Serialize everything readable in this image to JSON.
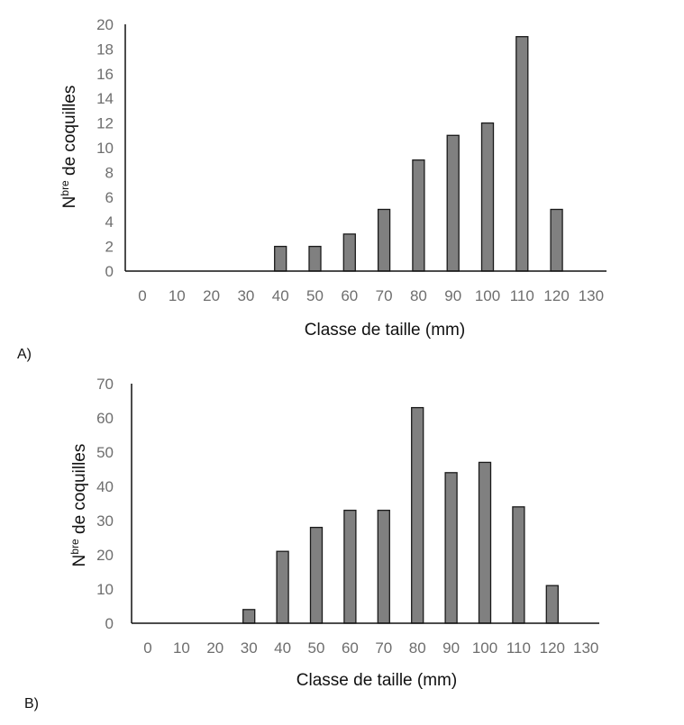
{
  "chart_data": [
    {
      "type": "bar",
      "panel_label": "A)",
      "xlabel": "Classe de taille (mm)",
      "ylabel_main": "N",
      "ylabel_sup": "bre",
      "ylabel_rest": " de coquilles",
      "ylim": [
        0,
        20
      ],
      "yticks": [
        "0",
        "2",
        "4",
        "6",
        "8",
        "10",
        "12",
        "14",
        "16",
        "18",
        "20"
      ],
      "categories": [
        "0",
        "10",
        "20",
        "30",
        "40",
        "50",
        "60",
        "70",
        "80",
        "90",
        "100",
        "110",
        "120",
        "130"
      ],
      "values": [
        0,
        0,
        0,
        0,
        2,
        2,
        3,
        5,
        9,
        11,
        12,
        19,
        5,
        0
      ],
      "grid": false,
      "bar_color": "#808080"
    },
    {
      "type": "bar",
      "panel_label": "B)",
      "xlabel": "Classe de taille (mm)",
      "ylabel_main": "N",
      "ylabel_sup": "bre",
      "ylabel_rest": " de coquilles",
      "ylim": [
        0,
        70
      ],
      "yticks": [
        "0",
        "10",
        "20",
        "30",
        "40",
        "50",
        "60",
        "70"
      ],
      "categories": [
        "0",
        "10",
        "20",
        "30",
        "40",
        "50",
        "60",
        "70",
        "80",
        "90",
        "100",
        "110",
        "120",
        "130"
      ],
      "values": [
        0,
        0,
        0,
        4,
        21,
        28,
        33,
        33,
        63,
        44,
        47,
        34,
        11,
        0
      ],
      "grid": false,
      "bar_color": "#808080"
    }
  ]
}
